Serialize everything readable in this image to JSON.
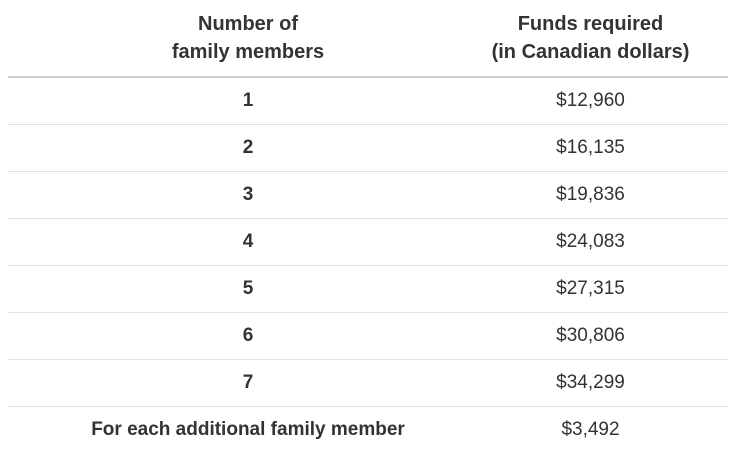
{
  "table": {
    "title_semantic": "Funds required by number of family members",
    "columns": {
      "members": {
        "line1": "Number of",
        "line2": "family members"
      },
      "funds": {
        "line1": "Funds required",
        "line2": "(in Canadian dollars)"
      }
    },
    "rows": [
      {
        "members": "1",
        "funds": "$12,960"
      },
      {
        "members": "2",
        "funds": "$16,135"
      },
      {
        "members": "3",
        "funds": "$19,836"
      },
      {
        "members": "4",
        "funds": "$24,083"
      },
      {
        "members": "5",
        "funds": "$27,315"
      },
      {
        "members": "6",
        "funds": "$30,806"
      },
      {
        "members": "7",
        "funds": "$34,299"
      },
      {
        "members": "For each additional family member",
        "funds": "$3,492"
      }
    ],
    "currency": "Canadian dollars"
  },
  "colors": {
    "text": "#333333",
    "header_rule": "#cfcfcf",
    "row_rule": "#e1e1e1",
    "background": "#ffffff"
  }
}
